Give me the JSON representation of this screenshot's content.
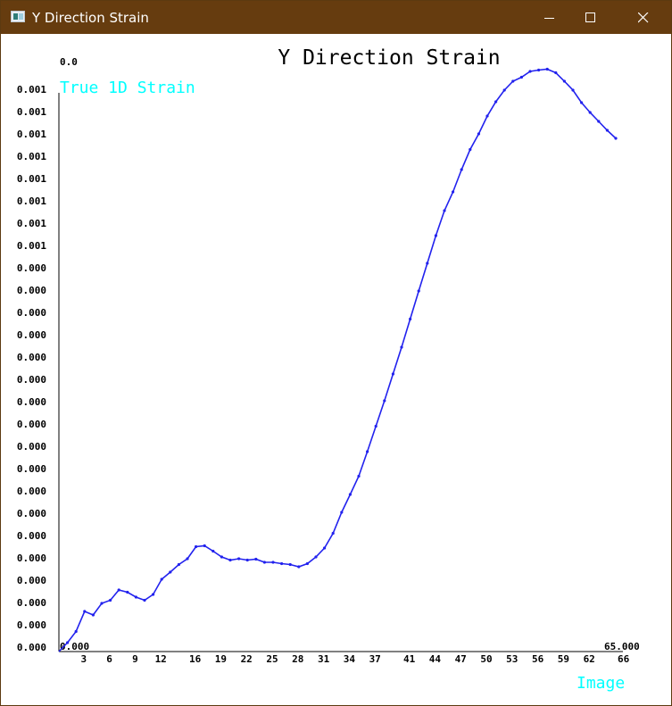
{
  "window": {
    "title": "Y Direction Strain",
    "icon": "app-window-icon",
    "controls": [
      "minimize-icon",
      "maximize-icon",
      "close-icon"
    ]
  },
  "chart_data": {
    "type": "line",
    "title": "Y Direction Strain",
    "ylabel": "True 1D Strain",
    "xlabel": "Image",
    "corner_labels": {
      "top_left": "0.0",
      "origin": "0.000",
      "x_end": "65.000"
    },
    "x_ticks": [
      3,
      6,
      9,
      12,
      16,
      19,
      22,
      25,
      28,
      31,
      34,
      37,
      41,
      44,
      47,
      50,
      53,
      56,
      59,
      62,
      66
    ],
    "y_ticks": [
      "0.001",
      "0.001",
      "0.001",
      "0.001",
      "0.001",
      "0.001",
      "0.001",
      "0.001",
      "0.000",
      "0.000",
      "0.000",
      "0.000",
      "0.000",
      "0.000",
      "0.000",
      "0.000",
      "0.000",
      "0.000",
      "0.000",
      "0.000",
      "0.000",
      "0.000",
      "0.000",
      "0.000",
      "0.000",
      "0.000"
    ],
    "xlim": [
      0,
      65
    ],
    "ylim": [
      0,
      0.00125
    ],
    "grid": false,
    "colors": {
      "line": "#2222ee",
      "label": "#00ffff",
      "axis": "#000000"
    },
    "series": [
      {
        "x": [
          1,
          2,
          3,
          4,
          5,
          6,
          7,
          8,
          9,
          10,
          11,
          12,
          13,
          14,
          15,
          16,
          17,
          18,
          19,
          20,
          21,
          22,
          23,
          24,
          25,
          26,
          27,
          28,
          29,
          30,
          31,
          32,
          33,
          34,
          35,
          36,
          37,
          38,
          39,
          40,
          41,
          42,
          43,
          44,
          45,
          46,
          47,
          48,
          49,
          50,
          51,
          52,
          53,
          54,
          55,
          56,
          57,
          58,
          59,
          60,
          61,
          62,
          63,
          64,
          65
        ],
        "values": [
          2e-05,
          4.5e-05,
          9e-05,
          8.2e-05,
          0.000108,
          0.000115,
          0.000138,
          0.000133,
          0.000122,
          0.000115,
          0.000128,
          0.000162,
          0.000178,
          0.000195,
          0.000208,
          0.000235,
          0.000237,
          0.000225,
          0.000212,
          0.000205,
          0.000208,
          0.000205,
          0.000207,
          0.0002,
          0.0002,
          0.000197,
          0.000195,
          0.00019,
          0.000197,
          0.000212,
          0.000232,
          0.000265,
          0.000312,
          0.000352,
          0.000393,
          0.000448,
          0.000505,
          0.000562,
          0.000622,
          0.000682,
          0.000745,
          0.000808,
          0.00087,
          0.000932,
          0.000988,
          0.00103,
          0.00108,
          0.001125,
          0.00116,
          0.0012,
          0.001232,
          0.001258,
          0.001278,
          0.001287,
          0.0013,
          0.001303,
          0.001305,
          0.001297,
          0.001278,
          0.001258,
          0.00123,
          0.001208,
          0.001188,
          0.001168,
          0.00115
        ]
      }
    ]
  }
}
